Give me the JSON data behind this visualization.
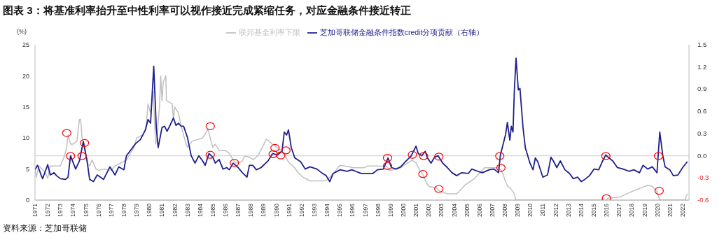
{
  "chart_data": {
    "type": "line",
    "title": "图表 3：将基准利率抬升至中性利率可以视作接近完成紧缩任务，对应金融条件接近转正",
    "ylabel": "(%)",
    "annotations": [
      "资料来源：芝加哥联储"
    ],
    "legend": "top",
    "xlim": [
      1971,
      2022.5
    ],
    "xticks": [
      1971,
      1972,
      1973,
      1974,
      1975,
      1976,
      1977,
      1978,
      1979,
      1980,
      1981,
      1982,
      1983,
      1984,
      1985,
      1986,
      1987,
      1988,
      1989,
      1990,
      1991,
      1992,
      1993,
      1994,
      1995,
      1996,
      1997,
      1998,
      1999,
      2000,
      2001,
      2002,
      2003,
      2004,
      2005,
      2006,
      2007,
      2008,
      2009,
      2010,
      2011,
      2012,
      2013,
      2014,
      2015,
      2016,
      2017,
      2018,
      2019,
      2020,
      2021,
      2022
    ],
    "ylim": [
      0,
      25
    ],
    "yticks": [
      0,
      5,
      10,
      15,
      20,
      25
    ],
    "y2lim": [
      -0.6,
      1.5
    ],
    "y2ticks": [
      -0.6,
      -0.3,
      {
        "value": 0,
        "label": "0.0"
      },
      0.3,
      0.6,
      0.9,
      1.2,
      1.5
    ],
    "ref_lines": [
      {
        "axis": "y2",
        "value": 0,
        "color": "#d9d9d9"
      }
    ],
    "series": [
      {
        "name": "联邦基金利率下限",
        "color": "#c0c0c0",
        "x": [
          1971.0,
          1971.1,
          1971.3,
          1971.8,
          1972.0,
          1972.2,
          1973.0,
          1973.3,
          1973.5,
          1973.6,
          1973.8,
          1974.0,
          1974.3,
          1974.5,
          1974.6,
          1974.7,
          1974.9,
          1975.1,
          1975.3,
          1975.5,
          1975.8,
          1976.0,
          1976.5,
          1977.0,
          1977.3,
          1977.8,
          1978.2,
          1978.5,
          1978.8,
          1979.0,
          1979.5,
          1979.7,
          1979.8,
          1979.9,
          1980.1,
          1980.3,
          1980.5,
          1980.6,
          1980.8,
          1980.9,
          1981.0,
          1981.1,
          1981.3,
          1981.35,
          1981.8,
          1981.9,
          1982.0,
          1982.3,
          1982.5,
          1982.7,
          1982.9,
          1983.0,
          1983.4,
          1984.2,
          1984.5,
          1984.6,
          1984.8,
          1985.0,
          1985.2,
          1985.5,
          1986.0,
          1986.3,
          1986.6,
          1986.8,
          1987.0,
          1987.3,
          1987.5,
          1987.9,
          1988.2,
          1988.6,
          1988.98,
          1989.2,
          1989.35,
          1989.7,
          1990.1,
          1990.45,
          1990.63,
          1991.0,
          1991.36,
          1991.73,
          1992.1,
          1992.65,
          1993.2,
          1993.9,
          1994.3,
          1994.7,
          1995.0,
          1995.6,
          1996.1,
          1996.9,
          1997.2,
          1998.0,
          1998.7,
          1998.9,
          1999.07,
          1999.8,
          2000.2,
          2000.7,
          2001.0,
          2001.3,
          2001.55,
          2001.8,
          2002.0,
          2002.56,
          2002.9,
          2003.5,
          2004.2,
          2004.4,
          2004.9,
          2005.5,
          2006.0,
          2006.4,
          2007.5,
          2007.7,
          2007.87,
          2008.06,
          2008.24,
          2008.4,
          2008.7,
          2008.88,
          2015.95,
          2016.13,
          2017.05,
          2017.78,
          2018.5,
          2018.88,
          2019.25,
          2019.61,
          2019.98,
          2020.2,
          2022.2,
          2022.28,
          2022.4
        ],
        "values": [
          5.0,
          3.7,
          5.5,
          4.5,
          3.5,
          5.5,
          5.5,
          7.0,
          8.5,
          10.5,
          9.0,
          9.0,
          9.5,
          13.0,
          13.0,
          10.0,
          9.0,
          6.0,
          5.5,
          6.5,
          5.0,
          4.8,
          5.0,
          4.8,
          5.5,
          6.0,
          6.5,
          7.5,
          8.5,
          10.0,
          10.5,
          11.5,
          13.0,
          15.5,
          14.0,
          17.5,
          9.0,
          10.0,
          15.0,
          20.0,
          16.0,
          19.0,
          20.0,
          16.0,
          15.5,
          13.0,
          15.0,
          14.0,
          12.0,
          10.5,
          9.0,
          8.5,
          9.5,
          10.0,
          11.0,
          11.5,
          10.0,
          8.5,
          9.0,
          8.0,
          8.0,
          7.5,
          6.5,
          6.0,
          6.0,
          6.2,
          7.1,
          6.9,
          6.5,
          7.3,
          8.8,
          9.8,
          9.6,
          9.0,
          8.4,
          7.9,
          7.3,
          6.0,
          5.4,
          4.4,
          3.7,
          3.1,
          3.1,
          3.1,
          3.9,
          4.8,
          5.6,
          5.4,
          5.2,
          5.2,
          5.5,
          5.5,
          5.4,
          4.8,
          4.8,
          5.2,
          5.8,
          6.4,
          6.0,
          4.8,
          4.1,
          2.9,
          2.2,
          2.0,
          1.4,
          1.0,
          1.0,
          1.4,
          2.5,
          3.3,
          4.3,
          5.2,
          5.2,
          4.8,
          4.1,
          2.9,
          2.2,
          2.0,
          1.2,
          0,
          0,
          0.3,
          0.5,
          1.2,
          1.8,
          2.1,
          2.4,
          2.2,
          1.4,
          0,
          0,
          0.7,
          1.0
        ]
      },
      {
        "name": "芝加哥联储金融条件指数credit分项贡献（右轴）",
        "axis": "y2",
        "color": "#1f1f8f",
        "x": [
          1971.0,
          1971.2,
          1971.5,
          1971.6,
          1972.0,
          1972.2,
          1972.5,
          1972.7,
          1973.0,
          1973.4,
          1973.6,
          1973.8,
          1974.2,
          1974.5,
          1974.8,
          1975.1,
          1975.3,
          1975.6,
          1975.9,
          1976.4,
          1976.9,
          1977.3,
          1977.6,
          1978.0,
          1978.2,
          1978.6,
          1978.9,
          1979.3,
          1979.7,
          1979.9,
          1980.1,
          1980.35,
          1980.55,
          1980.7,
          1981.0,
          1981.2,
          1981.4,
          1981.6,
          1981.9,
          1982.1,
          1982.3,
          1982.5,
          1982.7,
          1983.0,
          1983.3,
          1983.6,
          1983.9,
          1984.2,
          1984.4,
          1984.7,
          1985.0,
          1985.2,
          1985.5,
          1985.8,
          1986.1,
          1986.3,
          1986.6,
          1987.0,
          1987.33,
          1987.69,
          1987.88,
          1988.15,
          1988.43,
          1988.8,
          1989.35,
          1989.71,
          1990.08,
          1990.45,
          1990.63,
          1990.81,
          1990.96,
          1991.18,
          1991.46,
          1991.91,
          1992.28,
          1992.65,
          1993.2,
          1993.57,
          1993.93,
          1994.21,
          1994.48,
          1995.03,
          1995.58,
          1995.95,
          1996.68,
          1997.6,
          1997.97,
          1998.43,
          1998.8,
          1999.07,
          1999.44,
          1999.8,
          2000.17,
          2000.63,
          2001.0,
          2001.18,
          2001.46,
          2001.73,
          2001.91,
          2002.19,
          2002.46,
          2002.74,
          2003.11,
          2003.47,
          2003.84,
          2004.21,
          2004.57,
          2005.12,
          2005.4,
          2005.86,
          2006.23,
          2006.77,
          2007.14,
          2007.5,
          2007.65,
          2007.87,
          2008.06,
          2008.2,
          2008.39,
          2008.51,
          2008.64,
          2008.75,
          2008.88,
          2009.06,
          2009.19,
          2009.43,
          2009.61,
          2009.8,
          2009.98,
          2010.22,
          2010.4,
          2010.59,
          2010.99,
          2011.36,
          2011.63,
          2011.82,
          2012.09,
          2012.37,
          2012.73,
          2013.1,
          2013.38,
          2013.74,
          2014.02,
          2014.29,
          2014.66,
          2015.03,
          2015.39,
          2015.67,
          2015.95,
          2016.13,
          2016.5,
          2016.86,
          2017.32,
          2017.78,
          2018.15,
          2018.6,
          2018.88,
          2019.25,
          2019.61,
          2019.98,
          2020.2,
          2020.44,
          2020.62,
          2020.99,
          2021.27,
          2021.63,
          2022.0,
          2022.37
        ],
        "values": [
          -0.19,
          -0.13,
          -0.27,
          -0.31,
          -0.12,
          -0.26,
          -0.23,
          -0.27,
          -0.31,
          -0.32,
          -0.29,
          0.0,
          -0.18,
          -0.07,
          0.19,
          -0.07,
          -0.32,
          -0.35,
          -0.26,
          -0.32,
          -0.15,
          -0.26,
          -0.15,
          -0.19,
          0.0,
          0.09,
          0.16,
          0.22,
          0.35,
          0.49,
          0.44,
          1.21,
          0.38,
          0.11,
          0.38,
          0.4,
          0.33,
          0.4,
          0.51,
          0.41,
          0.44,
          0.4,
          0.4,
          0.25,
          0.0,
          -0.1,
          0.0,
          -0.07,
          -0.13,
          0.03,
          -0.02,
          -0.1,
          -0.05,
          -0.18,
          -0.16,
          -0.19,
          -0.1,
          -0.16,
          -0.23,
          -0.29,
          -0.13,
          -0.13,
          -0.19,
          -0.16,
          -0.07,
          0.03,
          0.01,
          0.06,
          0.32,
          0.28,
          0.35,
          0.11,
          -0.03,
          -0.08,
          -0.18,
          -0.15,
          -0.18,
          -0.23,
          -0.27,
          -0.35,
          -0.24,
          -0.19,
          -0.21,
          -0.19,
          -0.24,
          -0.24,
          -0.19,
          -0.18,
          -0.03,
          -0.16,
          -0.18,
          -0.15,
          -0.08,
          0.0,
          0.13,
          0.03,
          0.0,
          0.06,
          -0.03,
          -0.1,
          -0.02,
          0.0,
          -0.1,
          -0.16,
          -0.23,
          -0.27,
          -0.23,
          -0.24,
          -0.18,
          -0.21,
          -0.23,
          -0.19,
          -0.18,
          -0.23,
          0.01,
          0.16,
          0.29,
          0.45,
          0.21,
          0.4,
          0.32,
          0.89,
          1.32,
          0.89,
          0.91,
          0.38,
          0.11,
          0.0,
          -0.1,
          -0.19,
          -0.03,
          -0.08,
          -0.29,
          -0.26,
          -0.02,
          -0.07,
          -0.16,
          -0.07,
          -0.19,
          -0.24,
          -0.31,
          -0.29,
          -0.35,
          -0.32,
          -0.27,
          -0.18,
          -0.19,
          -0.08,
          0.01,
          -0.02,
          -0.07,
          -0.16,
          -0.18,
          -0.21,
          -0.19,
          -0.23,
          -0.13,
          -0.18,
          -0.15,
          -0.23,
          0.32,
          0.0,
          -0.15,
          -0.19,
          -0.27,
          -0.26,
          -0.16,
          -0.08
        ]
      },
      {
        "type": "scatter",
        "marker": "circle",
        "color": "#ff0000",
        "x": [
          1973.5,
          1973.8,
          1974.7,
          1974.9,
          1984.8,
          1984.8,
          1986.7,
          1989.9,
          1989.75,
          1990.35,
          1990.76,
          1998.76,
          1998.76,
          2000.72,
          2001.6,
          2001.55,
          2002.8,
          2002.8,
          2007.6,
          2007.69,
          2015.95,
          2016.0,
          2020.1,
          2020.15
        ],
        "values": [
          10.8,
          7.1,
          7.1,
          9.2,
          11.9,
          7.3,
          6.0,
          8.4,
          7.4,
          7.2,
          8.0,
          6.8,
          5.5,
          7.3,
          7.1,
          4.2,
          7.0,
          1.8,
          7.1,
          5.2,
          7.1,
          0.3,
          7.1,
          1.5
        ]
      }
    ]
  }
}
